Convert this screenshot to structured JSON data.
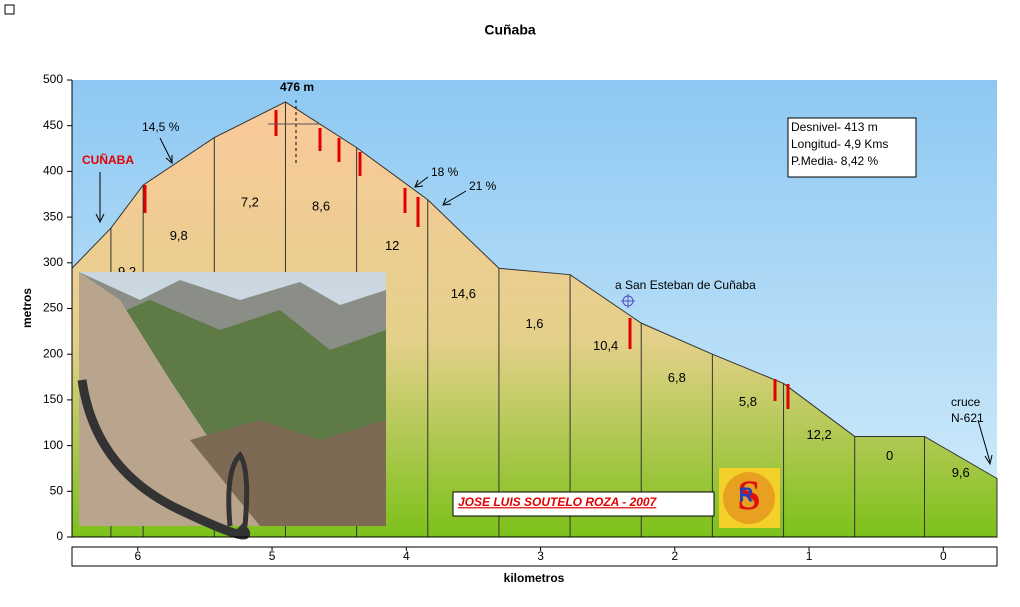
{
  "chart_data": {
    "type": "area",
    "title": "Cuñaba",
    "ylabel": "metros",
    "xlabel": "kilometros",
    "x": [
      6.49,
      6.2,
      5.96,
      5.43,
      4.9,
      4.37,
      3.84,
      3.31,
      2.78,
      2.25,
      1.72,
      1.19,
      0.66,
      0.14,
      -0.4
    ],
    "values": [
      294,
      338,
      385,
      437,
      476,
      426,
      369,
      294,
      287,
      234,
      200,
      168,
      110,
      110,
      64
    ],
    "segment_labels": [
      "9,2",
      "9,8",
      "7,2",
      "8,6",
      "12",
      "14,6",
      "1,6",
      "10,4",
      "6,8",
      "5,8",
      "12,2",
      "0",
      "9,6"
    ],
    "xlim": [
      6.49,
      -0.4
    ],
    "xticks": [
      6,
      5,
      4,
      3,
      2,
      1,
      0
    ],
    "ylim": [
      0,
      500
    ],
    "yticks": [
      0,
      50,
      100,
      150,
      200,
      250,
      300,
      350,
      400,
      450,
      500
    ],
    "annotations": {
      "peak": "476 m",
      "village": "CUÑABA",
      "grade_a": "14,5 %",
      "grade_b": "18 %",
      "grade_c": "21 %",
      "place": "a San Esteban de Cuñaba",
      "cross_1": "cruce",
      "cross_2": "N-621"
    },
    "info": [
      "Desnivel- 413 m",
      "Longitud- 4,9 Kms",
      "P.Media- 8,42 %"
    ],
    "author": "JOSE LUIS SOUTELO ROZA - 2007"
  }
}
